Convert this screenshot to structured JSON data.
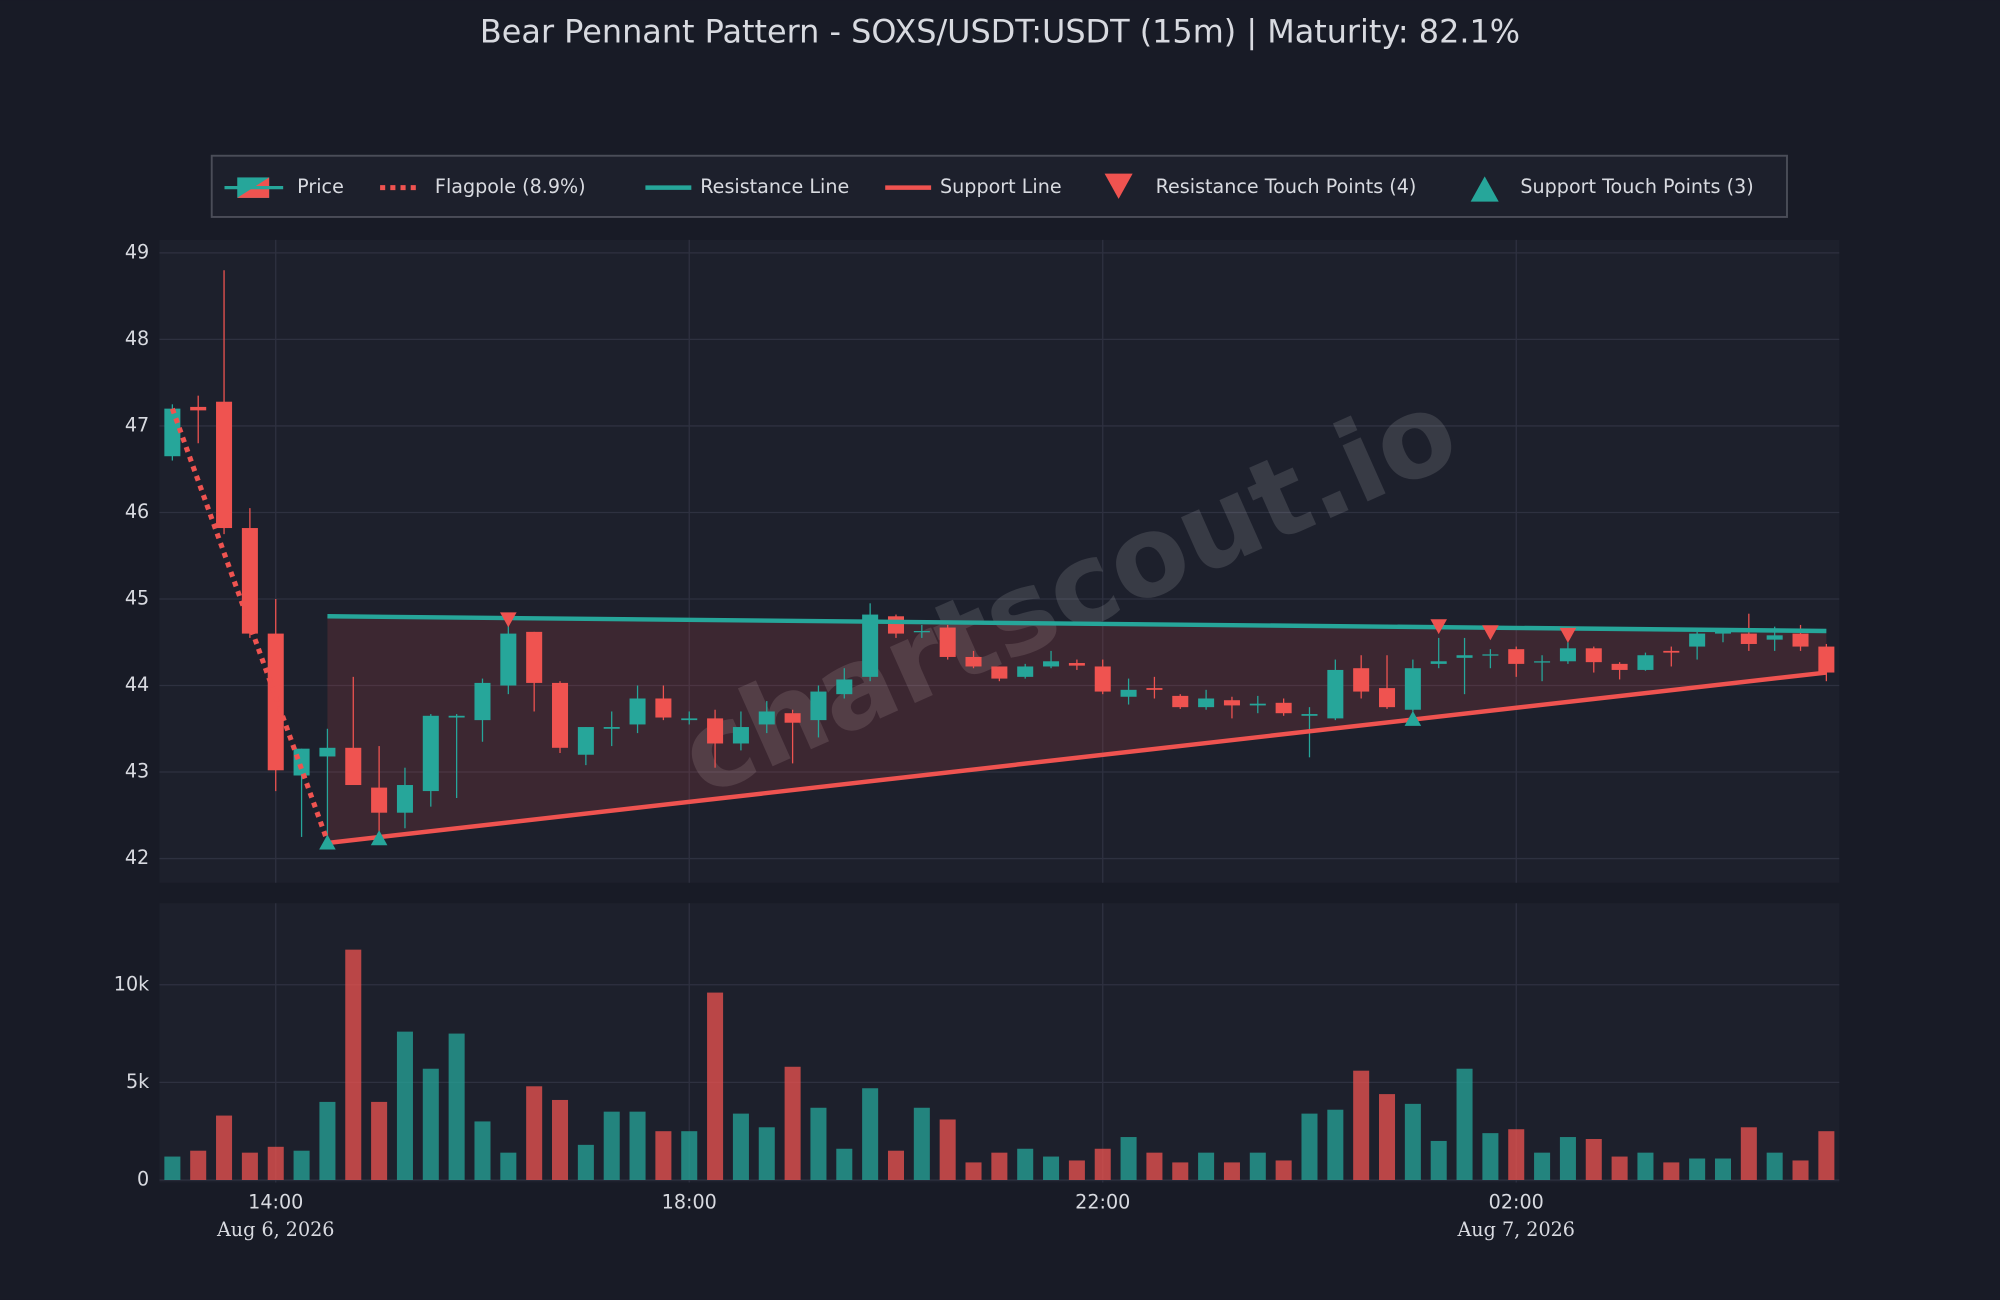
{
  "chart_data": {
    "type": "candlestick",
    "title": "Bear Pennant Pattern - SOXS/USDT:USDT (15m) | Maturity: 82.1%",
    "price_label": "Price",
    "watermark": "chartscout.io",
    "up_color": "#26a69a",
    "down_color": "#ef5350",
    "grid": true,
    "x": [
      "2026-08-06 13:00",
      "2026-08-06 13:15",
      "2026-08-06 13:30",
      "2026-08-06 13:45",
      "2026-08-06 14:00",
      "2026-08-06 14:15",
      "2026-08-06 14:30",
      "2026-08-06 14:45",
      "2026-08-06 15:00",
      "2026-08-06 15:15",
      "2026-08-06 15:30",
      "2026-08-06 15:45",
      "2026-08-06 16:00",
      "2026-08-06 16:15",
      "2026-08-06 16:30",
      "2026-08-06 16:45",
      "2026-08-06 17:00",
      "2026-08-06 17:15",
      "2026-08-06 17:30",
      "2026-08-06 17:45",
      "2026-08-06 18:00",
      "2026-08-06 18:15",
      "2026-08-06 18:30",
      "2026-08-06 18:45",
      "2026-08-06 19:00",
      "2026-08-06 19:15",
      "2026-08-06 19:30",
      "2026-08-06 19:45",
      "2026-08-06 20:00",
      "2026-08-06 20:15",
      "2026-08-06 20:30",
      "2026-08-06 20:45",
      "2026-08-06 21:00",
      "2026-08-06 21:15",
      "2026-08-06 21:30",
      "2026-08-06 21:45",
      "2026-08-06 22:00",
      "2026-08-06 22:15",
      "2026-08-06 22:30",
      "2026-08-06 22:45",
      "2026-08-06 23:00",
      "2026-08-06 23:15",
      "2026-08-06 23:30",
      "2026-08-06 23:45",
      "2026-08-07 00:00",
      "2026-08-07 00:15",
      "2026-08-07 00:30",
      "2026-08-07 00:45",
      "2026-08-07 01:00",
      "2026-08-07 01:15",
      "2026-08-07 01:30",
      "2026-08-07 01:45",
      "2026-08-07 02:00",
      "2026-08-07 02:15",
      "2026-08-07 02:30",
      "2026-08-07 02:45",
      "2026-08-07 03:00",
      "2026-08-07 03:15",
      "2026-08-07 03:30",
      "2026-08-07 03:45",
      "2026-08-07 04:00",
      "2026-08-07 04:15",
      "2026-08-07 04:30",
      "2026-08-07 04:45",
      "2026-08-07 05:00"
    ],
    "open": [
      46.65,
      47.22,
      47.28,
      45.82,
      44.6,
      42.96,
      43.18,
      43.28,
      42.82,
      42.53,
      42.78,
      43.63,
      43.6,
      44.0,
      44.62,
      44.03,
      43.2,
      43.5,
      43.55,
      43.85,
      43.6,
      43.62,
      43.33,
      43.55,
      43.68,
      43.6,
      43.9,
      44.1,
      44.8,
      44.62,
      44.67,
      44.33,
      44.22,
      44.1,
      44.22,
      44.26,
      44.22,
      43.87,
      43.97,
      43.88,
      43.75,
      43.83,
      43.77,
      43.8,
      43.65,
      43.62,
      44.2,
      43.97,
      43.72,
      44.25,
      44.32,
      44.35,
      44.42,
      44.27,
      44.28,
      44.43,
      44.25,
      44.18,
      44.4,
      44.45,
      44.6,
      44.6,
      44.53,
      44.6,
      44.45
    ],
    "high": [
      47.25,
      47.35,
      48.8,
      46.05,
      45.0,
      43.27,
      43.5,
      44.1,
      43.3,
      43.05,
      43.67,
      43.67,
      44.08,
      44.75,
      44.62,
      44.05,
      43.52,
      43.7,
      44.0,
      44.0,
      43.7,
      43.72,
      43.7,
      43.82,
      43.72,
      44.0,
      44.2,
      44.95,
      44.82,
      44.7,
      44.7,
      44.4,
      44.22,
      44.25,
      44.4,
      44.3,
      44.3,
      44.08,
      44.1,
      43.9,
      43.95,
      43.87,
      43.88,
      43.85,
      43.75,
      44.3,
      44.35,
      44.35,
      44.3,
      44.55,
      44.55,
      44.42,
      44.45,
      44.35,
      44.5,
      44.45,
      44.27,
      44.38,
      44.45,
      44.62,
      44.65,
      44.83,
      44.68,
      44.7,
      44.48
    ],
    "low": [
      46.6,
      46.8,
      45.75,
      44.55,
      42.78,
      42.25,
      42.2,
      42.85,
      42.3,
      42.35,
      42.6,
      42.7,
      43.35,
      43.9,
      43.7,
      43.22,
      43.08,
      43.3,
      43.45,
      43.6,
      43.55,
      43.05,
      43.25,
      43.45,
      43.1,
      43.4,
      43.85,
      44.05,
      44.55,
      44.55,
      44.3,
      44.2,
      44.05,
      44.08,
      44.2,
      44.18,
      43.9,
      43.78,
      43.85,
      43.73,
      43.72,
      43.62,
      43.68,
      43.65,
      43.17,
      43.6,
      43.85,
      43.73,
      43.7,
      44.2,
      43.9,
      44.2,
      44.1,
      44.05,
      44.25,
      44.15,
      44.07,
      44.17,
      44.22,
      44.3,
      44.5,
      44.4,
      44.4,
      44.4,
      44.05
    ],
    "close": [
      47.2,
      47.18,
      45.82,
      44.6,
      43.02,
      43.27,
      43.28,
      42.85,
      42.53,
      42.85,
      43.65,
      43.65,
      44.03,
      44.6,
      44.03,
      43.28,
      43.52,
      43.52,
      43.85,
      43.63,
      43.62,
      43.33,
      43.52,
      43.7,
      43.57,
      43.93,
      44.07,
      44.82,
      44.6,
      44.63,
      44.33,
      44.22,
      44.08,
      44.22,
      44.28,
      44.23,
      43.93,
      43.95,
      43.95,
      43.75,
      43.85,
      43.77,
      43.79,
      43.68,
      43.67,
      44.18,
      43.93,
      43.75,
      44.2,
      44.28,
      44.35,
      44.36,
      44.25,
      44.28,
      44.43,
      44.27,
      44.18,
      44.35,
      44.38,
      44.6,
      44.62,
      44.48,
      44.58,
      44.45,
      44.15
    ],
    "volume": [
      1200,
      1500,
      3300,
      1400,
      1700,
      1500,
      4000,
      11800,
      4000,
      7600,
      5700,
      7500,
      3000,
      1400,
      4800,
      4100,
      1800,
      3500,
      3500,
      2500,
      2500,
      9600,
      3400,
      2700,
      5800,
      3700,
      1600,
      4700,
      1500,
      3700,
      3100,
      900,
      1400,
      1600,
      1200,
      1000,
      1600,
      2200,
      1400,
      900,
      1400,
      900,
      1400,
      1000,
      3400,
      3600,
      5600,
      4400,
      3900,
      2000,
      5700,
      2400,
      2600,
      1400,
      2200,
      2100,
      1200,
      1400,
      900,
      1100,
      1100,
      2700,
      1400,
      1000,
      2500
    ],
    "xlim": [
      "2026-08-06 12:52:30",
      "2026-08-07 05:07:30"
    ],
    "xticks": [
      {
        "value": "2026-08-06 14:00",
        "label": "14:00"
      },
      {
        "value": "2026-08-06 18:00",
        "label": "18:00"
      },
      {
        "value": "2026-08-06 22:00",
        "label": "22:00"
      },
      {
        "value": "2026-08-07 02:00",
        "label": "02:00"
      }
    ],
    "xtick_dates": [
      {
        "value": "2026-08-06 14:00",
        "label": "Aug 6, 2026"
      },
      {
        "value": "2026-08-07 02:00",
        "label": "Aug 7, 2026"
      }
    ],
    "ylim": [
      41.72,
      49.15
    ],
    "yticks": [
      42,
      43,
      44,
      45,
      46,
      47,
      48,
      49
    ],
    "volume_ylim": [
      -130,
      14180
    ],
    "volume_yticks": [
      0,
      {
        "value": 5000,
        "label": "5k"
      },
      {
        "value": 10000,
        "label": "10k"
      }
    ],
    "lines": [
      {
        "name": "Flagpole (8.9%)",
        "color": "#ef5350",
        "style": "dotted",
        "x": [
          "2026-08-06 13:00",
          "2026-08-06 14:30"
        ],
        "y": [
          47.2,
          42.2
        ]
      },
      {
        "name": "Resistance Line",
        "color": "#26a69a",
        "style": "solid",
        "x": [
          "2026-08-06 14:30",
          "2026-08-07 05:00"
        ],
        "y": [
          44.8,
          44.63
        ]
      },
      {
        "name": "Support Line",
        "color": "#ef5350",
        "style": "solid",
        "x": [
          "2026-08-06 14:30",
          "2026-08-07 05:00"
        ],
        "y": [
          42.18,
          44.15
        ]
      }
    ],
    "markers": [
      {
        "name": "Resistance Touch Points (4)",
        "shape": "triangle-down",
        "color": "#ef5350",
        "x": [
          "2026-08-06 16:15",
          "2026-08-07 01:15",
          "2026-08-07 01:45",
          "2026-08-07 02:30"
        ],
        "y": [
          44.75,
          44.67,
          44.6,
          44.57
        ]
      },
      {
        "name": "Support Touch Points (3)",
        "shape": "triangle-up",
        "color": "#26a69a",
        "x": [
          "2026-08-06 14:30",
          "2026-08-06 15:00",
          "2026-08-07 01:00"
        ],
        "y": [
          42.2,
          42.25,
          43.63
        ]
      }
    ]
  }
}
